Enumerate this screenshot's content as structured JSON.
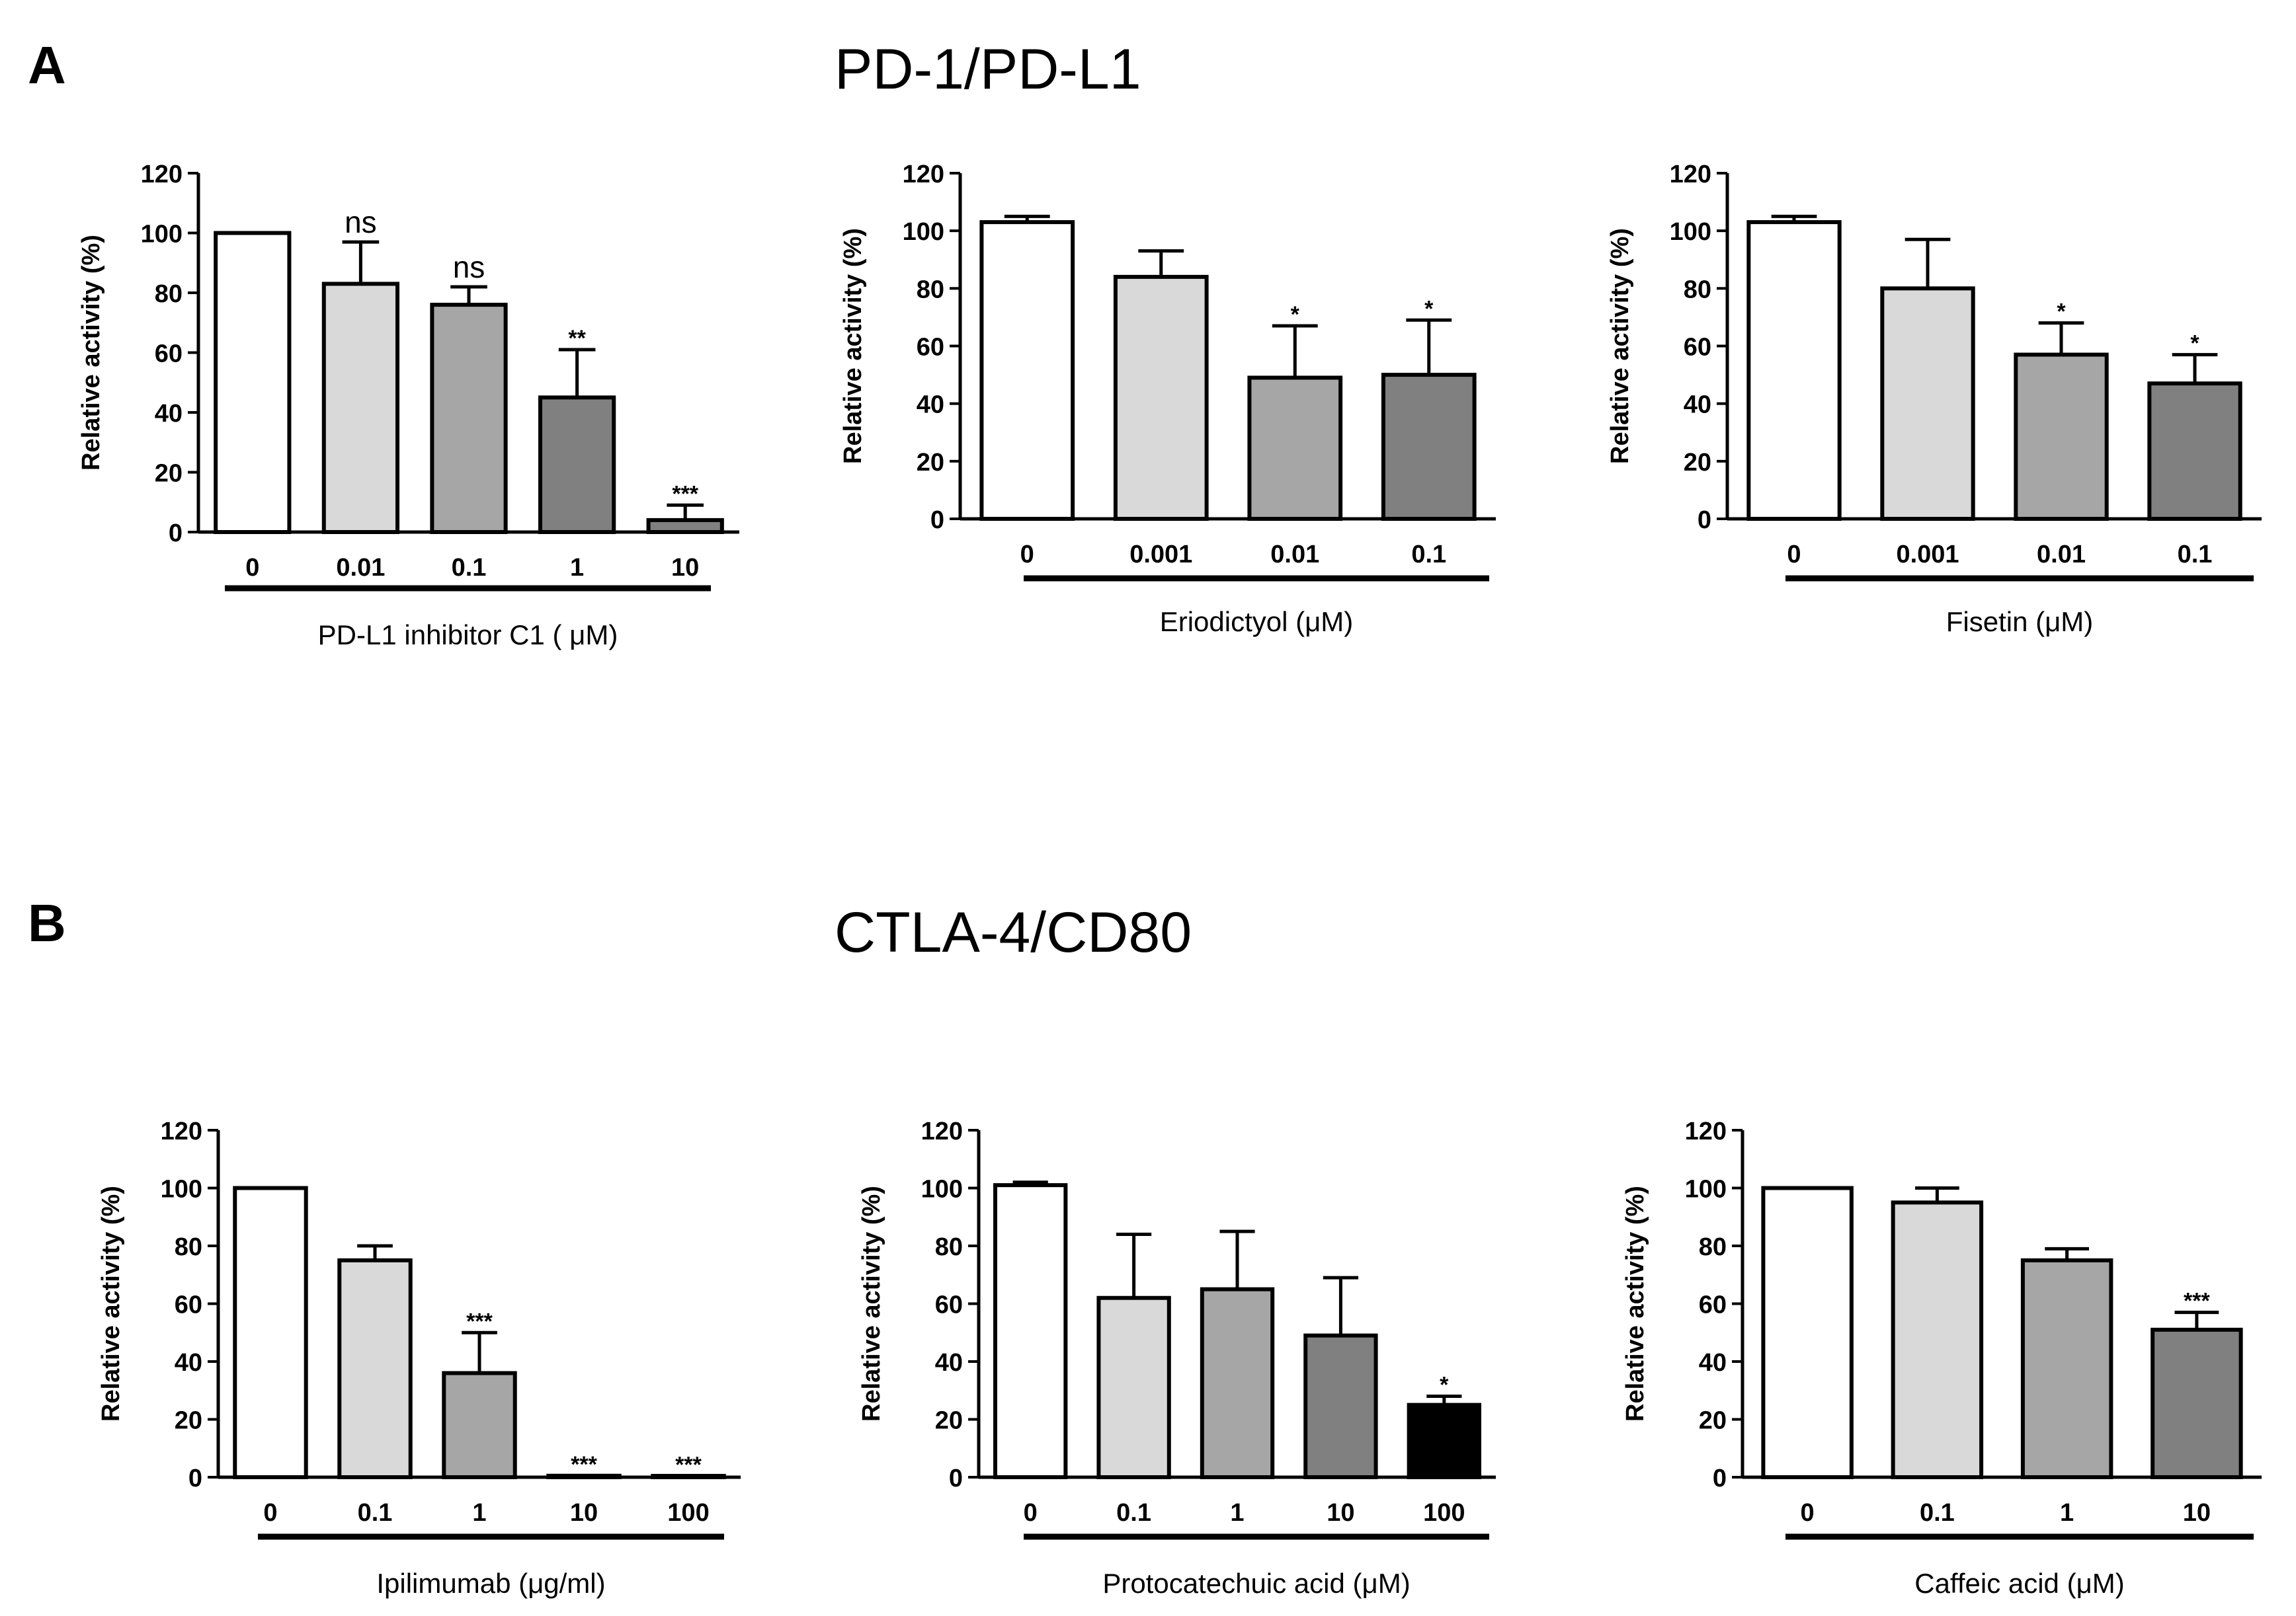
{
  "panels": [
    {
      "letter": "A",
      "title": "PD-1/PD-L1"
    },
    {
      "letter": "B",
      "title": "CTLA-4/CD80"
    }
  ],
  "colors": {
    "white": "#ffffff",
    "light": "#d9d9d9",
    "mid": "#a6a6a6",
    "dark": "#808080",
    "black": "#000000"
  },
  "chart_data": [
    {
      "type": "bar",
      "panel": "A",
      "title": "",
      "xlabel": "PD-L1 inhibitor C1 ( μM)",
      "ylabel": "Relative activity (%)",
      "ylim": [
        0,
        120
      ],
      "yticks": [
        "0",
        "20",
        "40",
        "60",
        "80",
        "100",
        "120"
      ],
      "categories": [
        "0",
        "0.01",
        "0.1",
        "1",
        "10"
      ],
      "values": [
        100,
        83,
        76,
        45,
        4
      ],
      "errors": [
        0,
        14,
        6,
        16,
        5
      ],
      "significance": [
        "",
        "ns",
        "ns",
        "**",
        "***"
      ],
      "fills": [
        "white",
        "light",
        "mid",
        "dark",
        "dark"
      ]
    },
    {
      "type": "bar",
      "panel": "A",
      "title": "",
      "xlabel": "Eriodictyol (μM)",
      "ylabel": "Relative activity (%)",
      "ylim": [
        0,
        120
      ],
      "yticks": [
        "0",
        "20",
        "40",
        "60",
        "80",
        "100",
        "120"
      ],
      "categories": [
        "0",
        "0.001",
        "0.01",
        "0.1"
      ],
      "values": [
        103,
        84,
        49,
        50
      ],
      "errors": [
        2,
        9,
        18,
        19
      ],
      "significance": [
        "",
        "",
        "*",
        "*"
      ],
      "fills": [
        "white",
        "light",
        "mid",
        "dark"
      ]
    },
    {
      "type": "bar",
      "panel": "A",
      "title": "",
      "xlabel": "Fisetin (μM)",
      "ylabel": "Relative activity (%)",
      "ylim": [
        0,
        120
      ],
      "yticks": [
        "0",
        "20",
        "40",
        "60",
        "80",
        "100",
        "120"
      ],
      "categories": [
        "0",
        "0.001",
        "0.01",
        "0.1"
      ],
      "values": [
        103,
        80,
        57,
        47
      ],
      "errors": [
        2,
        17,
        11,
        10
      ],
      "significance": [
        "",
        "",
        "*",
        "*"
      ],
      "fills": [
        "white",
        "light",
        "mid",
        "dark"
      ]
    },
    {
      "type": "bar",
      "panel": "B",
      "title": "",
      "xlabel": "Ipilimumab (μg/ml)",
      "ylabel": "Relative activity (%)",
      "ylim": [
        0,
        120
      ],
      "yticks": [
        "0",
        "20",
        "40",
        "60",
        "80",
        "100",
        "120"
      ],
      "categories": [
        "0",
        "0.1",
        "1",
        "10",
        "100"
      ],
      "values": [
        100,
        75,
        36,
        0.5,
        0.3
      ],
      "errors": [
        0,
        5,
        14,
        0,
        0
      ],
      "significance": [
        "",
        "",
        "***",
        "***",
        "***"
      ],
      "fills": [
        "white",
        "light",
        "mid",
        "dark",
        "black"
      ]
    },
    {
      "type": "bar",
      "panel": "B",
      "title": "",
      "xlabel": "Protocatechuic acid (μM)",
      "ylabel": "Relative activity (%)",
      "ylim": [
        0,
        120
      ],
      "yticks": [
        "0",
        "20",
        "40",
        "60",
        "80",
        "100",
        "120"
      ],
      "categories": [
        "0",
        "0.1",
        "1",
        "10",
        "100"
      ],
      "values": [
        101,
        62,
        65,
        49,
        25
      ],
      "errors": [
        1,
        22,
        20,
        20,
        3
      ],
      "significance": [
        "",
        "",
        "",
        "",
        "*"
      ],
      "fills": [
        "white",
        "light",
        "mid",
        "dark",
        "black"
      ]
    },
    {
      "type": "bar",
      "panel": "B",
      "title": "",
      "xlabel": "Caffeic acid (μM)",
      "ylabel": "Relative activity (%)",
      "ylim": [
        0,
        120
      ],
      "yticks": [
        "0",
        "20",
        "40",
        "60",
        "80",
        "100",
        "120"
      ],
      "categories": [
        "0",
        "0.1",
        "1",
        "10"
      ],
      "values": [
        100,
        95,
        75,
        51
      ],
      "errors": [
        0,
        5,
        4,
        6
      ],
      "significance": [
        "",
        "",
        "",
        "***"
      ],
      "fills": [
        "white",
        "light",
        "mid",
        "dark"
      ]
    }
  ]
}
